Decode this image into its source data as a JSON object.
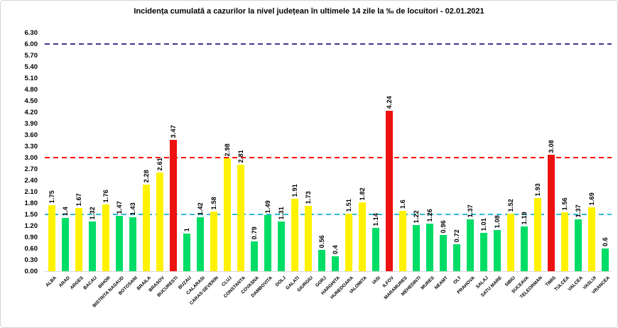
{
  "title": "Incidența cumulată a cazurilor la nivel județean în ultimele 14 zile la ‰ de locuitori - 02.01.2021",
  "chart_data": {
    "type": "bar",
    "title": "Incidența cumulată a cazurilor la nivel județean în ultimele 14 zile la ‰ de locuitori - 02.01.2021",
    "xlabel": "",
    "ylabel": "",
    "ylim": [
      0,
      6.3
    ],
    "y_tick_step": 0.3,
    "y_ticks": [
      "0.00",
      "0.30",
      "0.60",
      "0.90",
      "1.20",
      "1.50",
      "1.80",
      "2.10",
      "2.40",
      "2.70",
      "3.00",
      "3.30",
      "3.60",
      "3.90",
      "4.20",
      "4.50",
      "4.80",
      "5.10",
      "5.40",
      "5.70",
      "6.00",
      "6.30"
    ],
    "grid": false,
    "legend_position": "none",
    "background": "#ffffff",
    "bar_palette": {
      "green": "#00dd66",
      "yellow": "#fff200",
      "red": "#ee1111"
    },
    "reference_lines": [
      {
        "value": 6.0,
        "color": "#3a3a8e",
        "style": "dashed"
      },
      {
        "value": 3.0,
        "color": "#ff0000",
        "style": "dashed"
      },
      {
        "value": 1.5,
        "color": "#2fb9dc",
        "style": "dashed"
      }
    ],
    "items": [
      {
        "county": "ALBA",
        "value": 1.75,
        "label": "1.75",
        "color": "yellow"
      },
      {
        "county": "ARAD",
        "value": 1.4,
        "label": "1.4",
        "color": "green"
      },
      {
        "county": "ARGES",
        "value": 1.67,
        "label": "1.67",
        "color": "yellow"
      },
      {
        "county": "BACAU",
        "value": 1.32,
        "label": "1.32",
        "color": "green"
      },
      {
        "county": "BIHOR",
        "value": 1.76,
        "label": "1.76",
        "color": "yellow"
      },
      {
        "county": "BISTRITA NASAUD",
        "value": 1.47,
        "label": "1.47",
        "color": "green"
      },
      {
        "county": "BOTOSANI",
        "value": 1.43,
        "label": "1.43",
        "color": "green"
      },
      {
        "county": "BRAILA",
        "value": 2.28,
        "label": "2.28",
        "color": "yellow"
      },
      {
        "county": "BRASOV",
        "value": 2.61,
        "label": "2.61",
        "color": "yellow"
      },
      {
        "county": "BUCURESTI",
        "value": 3.47,
        "label": "3.47",
        "color": "red"
      },
      {
        "county": "BUZAU",
        "value": 1.0,
        "label": "1",
        "color": "green"
      },
      {
        "county": "CALARASI",
        "value": 1.42,
        "label": "1.42",
        "color": "green"
      },
      {
        "county": "CARAS-SEVERIN",
        "value": 1.58,
        "label": "1.58",
        "color": "yellow"
      },
      {
        "county": "CLUJ",
        "value": 2.98,
        "label": "2.98",
        "color": "yellow"
      },
      {
        "county": "CONSTANTA",
        "value": 2.81,
        "label": "2.81",
        "color": "yellow"
      },
      {
        "county": "COVASNA",
        "value": 0.79,
        "label": "0.79",
        "color": "green"
      },
      {
        "county": "DAMBOVITA",
        "value": 1.49,
        "label": "1.49",
        "color": "green"
      },
      {
        "county": "DOLJ",
        "value": 1.31,
        "label": "1.31",
        "color": "green"
      },
      {
        "county": "GALATI",
        "value": 1.91,
        "label": "1.91",
        "color": "yellow"
      },
      {
        "county": "GIURGIU",
        "value": 1.73,
        "label": "1.73",
        "color": "yellow"
      },
      {
        "county": "GORJ",
        "value": 0.56,
        "label": "0.56",
        "color": "green"
      },
      {
        "county": "HARGHITA",
        "value": 0.4,
        "label": "0.4",
        "color": "green"
      },
      {
        "county": "HUNEDOARA",
        "value": 1.51,
        "label": "1.51",
        "color": "yellow"
      },
      {
        "county": "IALOMITA",
        "value": 1.82,
        "label": "1.82",
        "color": "yellow"
      },
      {
        "county": "IASI",
        "value": 1.14,
        "label": "1.14",
        "color": "green"
      },
      {
        "county": "ILFOV",
        "value": 4.24,
        "label": "4.24",
        "color": "red"
      },
      {
        "county": "MARAMURES",
        "value": 1.6,
        "label": "1.6",
        "color": "yellow"
      },
      {
        "county": "MEHEDINTI",
        "value": 1.22,
        "label": "1.22",
        "color": "green"
      },
      {
        "county": "MURES",
        "value": 1.26,
        "label": "1.26",
        "color": "green"
      },
      {
        "county": "NEAMT",
        "value": 0.96,
        "label": "0.96",
        "color": "green"
      },
      {
        "county": "OLT",
        "value": 0.72,
        "label": "0.72",
        "color": "green"
      },
      {
        "county": "PRAHOVA",
        "value": 1.37,
        "label": "1.37",
        "color": "green"
      },
      {
        "county": "SALAJ",
        "value": 1.01,
        "label": "1.01",
        "color": "green"
      },
      {
        "county": "SATU MARE",
        "value": 1.08,
        "label": "1.08",
        "color": "green"
      },
      {
        "county": "SIBIU",
        "value": 1.52,
        "label": "1.52",
        "color": "yellow"
      },
      {
        "county": "SUCEAVA",
        "value": 1.19,
        "label": "1.19",
        "color": "green"
      },
      {
        "county": "TELEORMAN",
        "value": 1.93,
        "label": "1.93",
        "color": "yellow"
      },
      {
        "county": "TIMIS",
        "value": 3.08,
        "label": "3.08",
        "color": "red"
      },
      {
        "county": "TULCEA",
        "value": 1.56,
        "label": "1.56",
        "color": "yellow"
      },
      {
        "county": "VALCEA",
        "value": 1.37,
        "label": "1.37",
        "color": "green"
      },
      {
        "county": "VASLUI",
        "value": 1.69,
        "label": "1.69",
        "color": "yellow"
      },
      {
        "county": "VRANCEA",
        "value": 0.6,
        "label": "0.6",
        "color": "green"
      }
    ]
  }
}
